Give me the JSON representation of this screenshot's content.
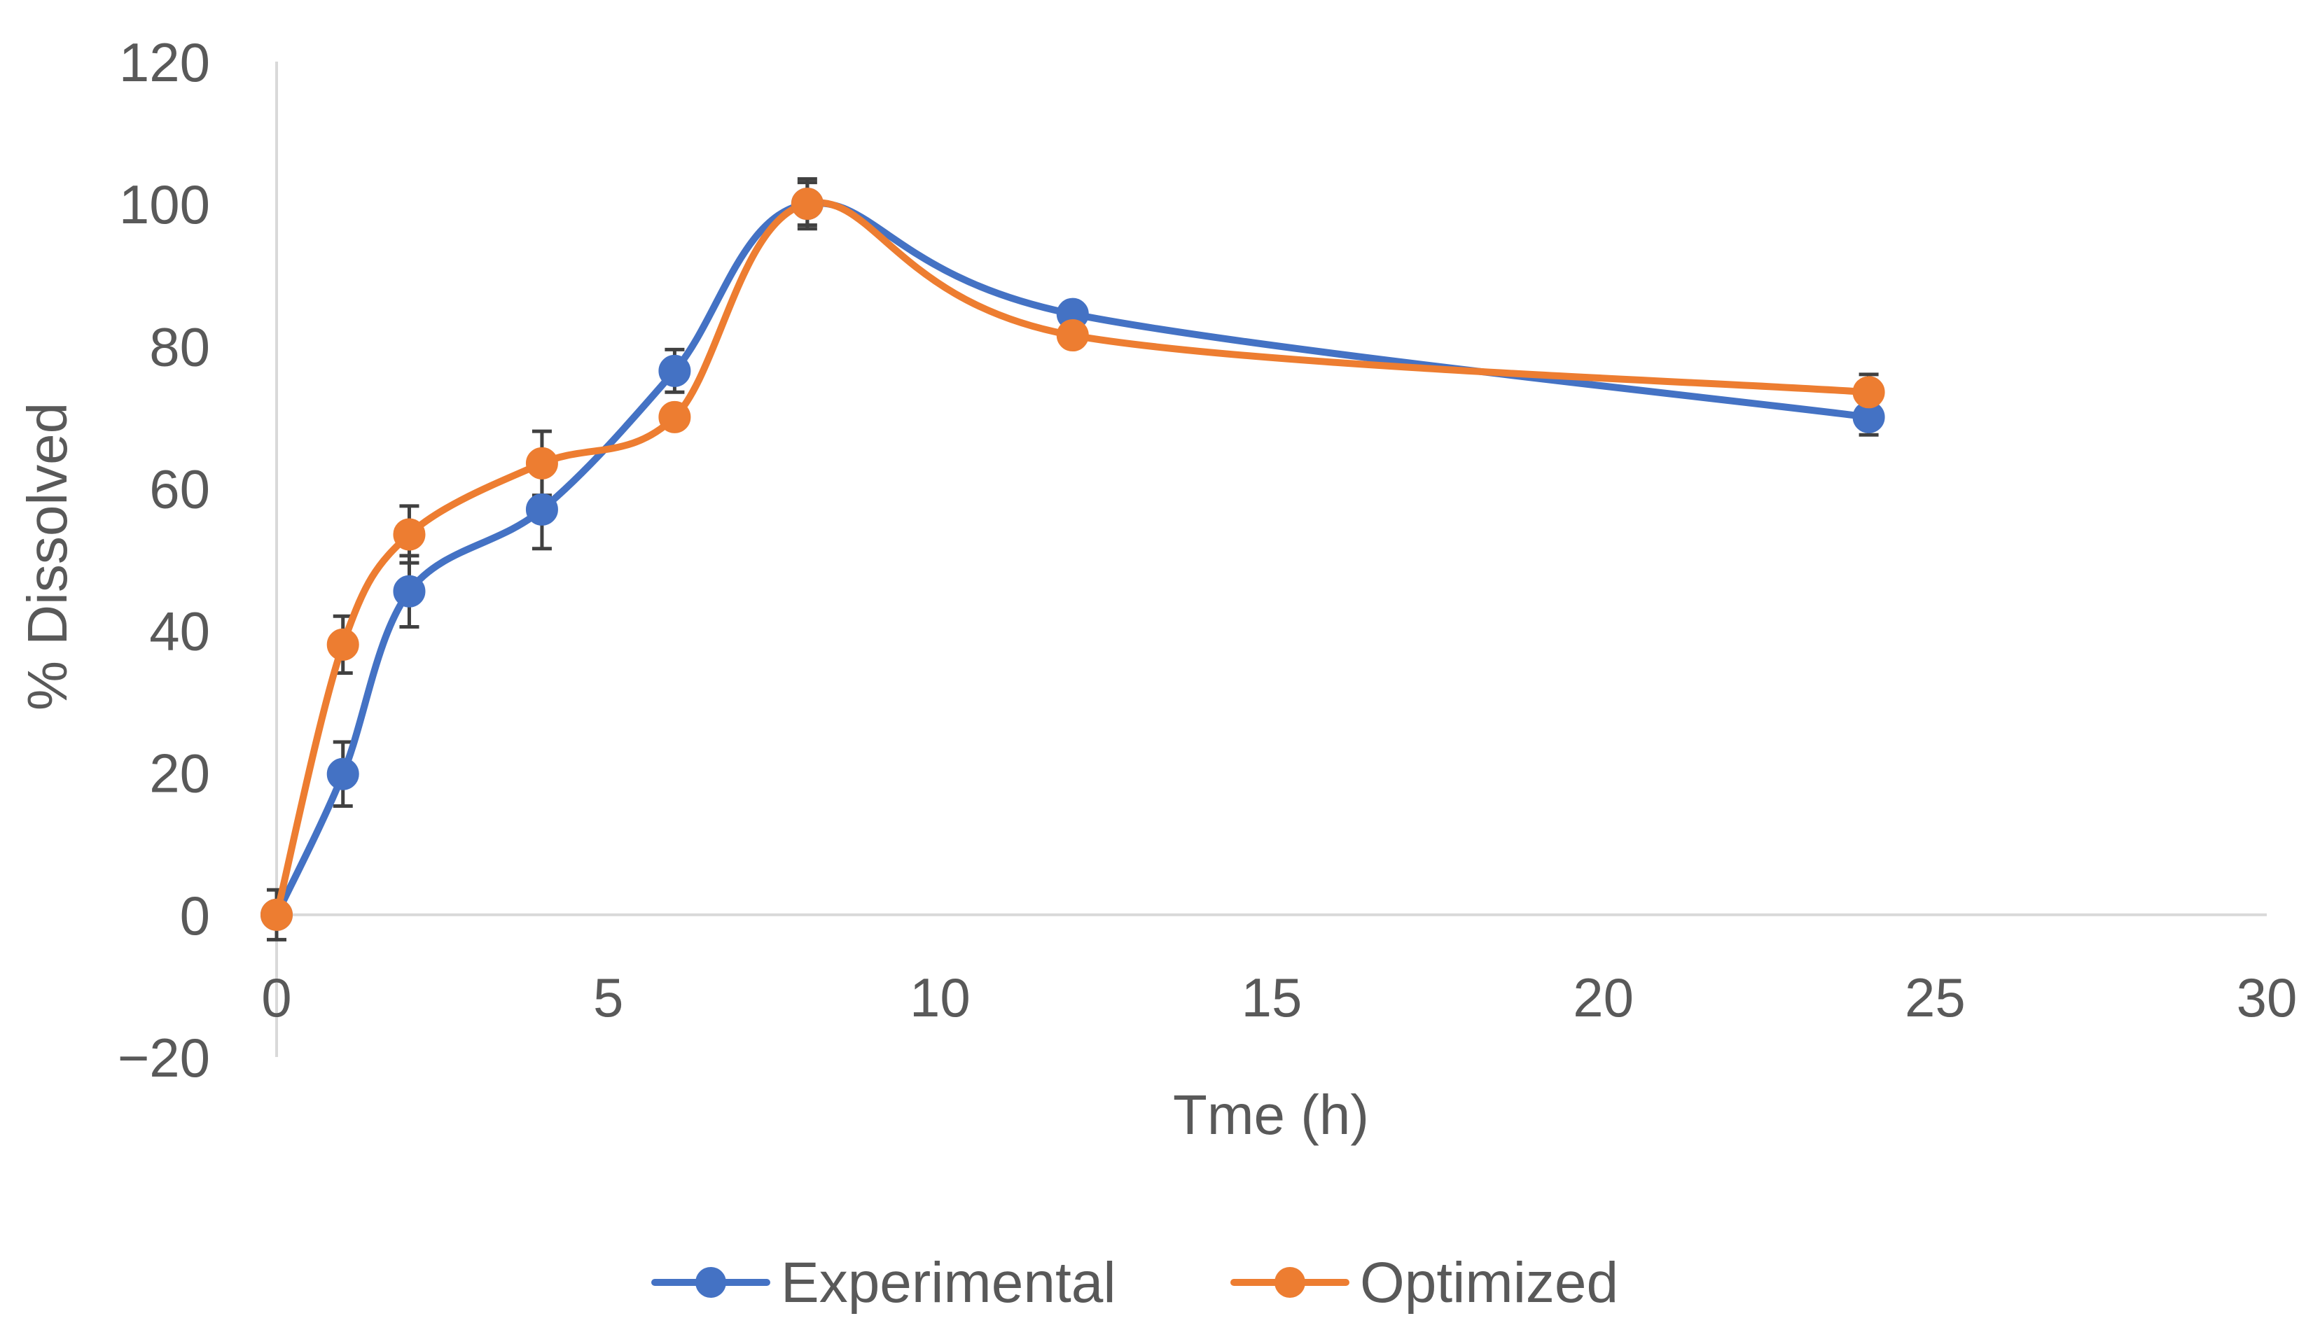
{
  "chart_data": {
    "type": "line",
    "title": "",
    "xlabel": "Tme (h)",
    "ylabel": "% Dissolved",
    "xlim": [
      0,
      30
    ],
    "ylim": [
      -20,
      120
    ],
    "xticks": [
      0,
      5,
      10,
      15,
      20,
      25,
      30
    ],
    "yticks": [
      -20,
      0,
      20,
      40,
      60,
      80,
      100,
      120
    ],
    "xtick_labels": [
      "0",
      "5",
      "10",
      "15",
      "20",
      "25",
      "30"
    ],
    "ytick_labels": [
      "−20",
      "0",
      "20",
      "40",
      "60",
      "80",
      "100",
      "120"
    ],
    "grid": false,
    "smooth": true,
    "legend_position": "bottom",
    "x": [
      0,
      1,
      2,
      4,
      6,
      8,
      12,
      24
    ],
    "series": [
      {
        "name": "Experimental",
        "color": "#4472C4",
        "values": [
          0,
          19.8,
          45.5,
          57,
          76.5,
          100,
          84.5,
          70
        ],
        "error": [
          3.5,
          4.5,
          5,
          5.5,
          3,
          3.5,
          0,
          2.5
        ]
      },
      {
        "name": "Optimized",
        "color": "#ED7D31",
        "values": [
          0,
          38,
          53.5,
          63.5,
          70,
          100,
          81.5,
          73.5
        ],
        "error": [
          0,
          4,
          4,
          4.5,
          0,
          3,
          0,
          2.5
        ]
      }
    ],
    "axis_color": "#d9d9d9",
    "text_color": "#595959",
    "errorbar_color": "#404040"
  }
}
